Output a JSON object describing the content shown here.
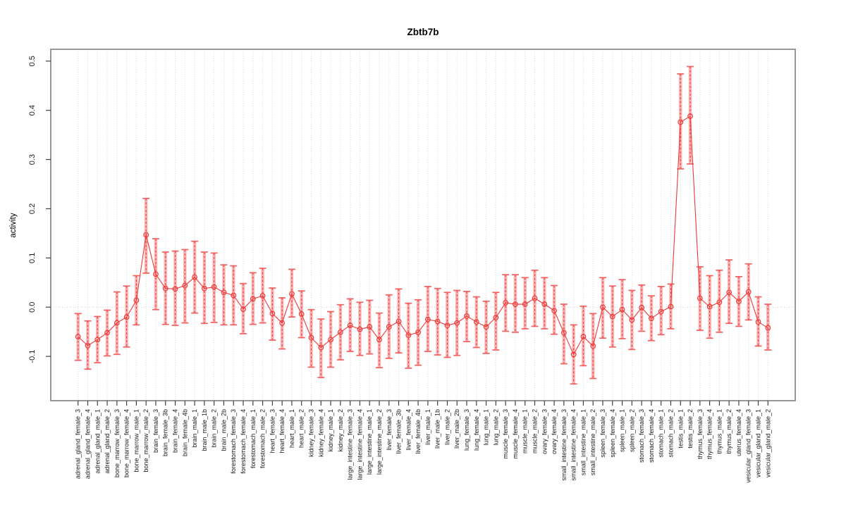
{
  "chart_data": {
    "type": "line",
    "title": "Zbtb7b",
    "ylabel": "activity",
    "xlabel": "",
    "ylim": [
      -0.19,
      0.524
    ],
    "yticks": [
      -0.1,
      0.0,
      0.1,
      0.2,
      0.3,
      0.4,
      0.5
    ],
    "grid": "vertical dotted line per category; horizontal dotted line at 0",
    "legend": "none",
    "point_style": "open-circle with error bars",
    "xticklabel_rotation": 90,
    "categories": [
      "adrenal_gland_female_3",
      "adrenal_gland_female_4",
      "adrenal_gland_male_1",
      "adrenal_gland_male_2",
      "bone_marrow_female_3",
      "bone_marrow_female_4",
      "bone_marrow_male_1",
      "bone_marrow_male_2",
      "brain_female_3",
      "brain_female_3b",
      "brain_female_4",
      "brain_female_4b",
      "brain_male_1",
      "brain_male_1b",
      "brain_male_2",
      "brain_male_2b",
      "forestomach_female_3",
      "forestomach_female_4",
      "forestomach_male_1",
      "forestomach_male_2",
      "heart_female_3",
      "heart_female_4",
      "heart_male_1",
      "heart_male_2",
      "kidney_female_3",
      "kidney_female_4",
      "kidney_male_1",
      "kidney_male_2",
      "large_intestine_female_3",
      "large_intestine_female_4",
      "large_intestine_male_1",
      "large_intestine_male_2",
      "liver_female_3",
      "liver_female_3b",
      "liver_female_4",
      "liver_female_4b",
      "liver_male_1",
      "liver_male_1b",
      "liver_male_2",
      "liver_male_2b",
      "lung_female_3",
      "lung_female_4",
      "lung_male_1",
      "lung_male_2",
      "muscle_female_3",
      "muscle_female_4",
      "muscle_male_1",
      "muscle_male_2",
      "ovary_female_3",
      "ovary_female_4",
      "small_intestine_female_3",
      "small_intestine_female_4",
      "small_intestine_male_1",
      "small_intestine_male_2",
      "spleen_female_3",
      "spleen_female_4",
      "spleen_male_1",
      "spleen_male_2",
      "stomach_female_3",
      "stomach_female_4",
      "stomach_male_1",
      "stomach_male_2",
      "testis_male_1",
      "testis_male_2",
      "thymus_female_3",
      "thymus_female_4",
      "thymus_male_1",
      "thymus_male_2",
      "uterus_female_4",
      "vesicular_gland_female_3",
      "vesicular_gland_male_1",
      "vesicular_gland_male_2"
    ],
    "values": [
      -0.06,
      -0.078,
      -0.066,
      -0.052,
      -0.032,
      -0.02,
      0.014,
      0.147,
      0.067,
      0.038,
      0.037,
      0.044,
      0.061,
      0.038,
      0.041,
      0.03,
      0.024,
      -0.004,
      0.017,
      0.023,
      -0.013,
      -0.032,
      0.027,
      -0.014,
      -0.062,
      -0.082,
      -0.066,
      -0.051,
      -0.037,
      -0.045,
      -0.04,
      -0.066,
      -0.04,
      -0.029,
      -0.057,
      -0.051,
      -0.025,
      -0.029,
      -0.037,
      -0.032,
      -0.018,
      -0.03,
      -0.04,
      -0.021,
      0.009,
      0.006,
      0.006,
      0.018,
      0.006,
      -0.007,
      -0.052,
      -0.096,
      -0.06,
      -0.079,
      0.0,
      -0.019,
      -0.005,
      -0.026,
      -0.001,
      -0.023,
      -0.009,
      0.001,
      0.376,
      0.388,
      0.018,
      0.001,
      0.01,
      0.03,
      0.012,
      0.031,
      -0.03,
      -0.042
    ],
    "err_lo": [
      -0.108,
      -0.126,
      -0.113,
      -0.099,
      -0.096,
      -0.081,
      -0.036,
      0.069,
      -0.005,
      -0.035,
      -0.037,
      -0.032,
      -0.012,
      -0.033,
      -0.031,
      -0.036,
      -0.036,
      -0.054,
      -0.035,
      -0.032,
      -0.067,
      -0.085,
      -0.02,
      -0.062,
      -0.122,
      -0.143,
      -0.122,
      -0.107,
      -0.09,
      -0.098,
      -0.095,
      -0.123,
      -0.104,
      -0.093,
      -0.124,
      -0.118,
      -0.09,
      -0.097,
      -0.102,
      -0.098,
      -0.07,
      -0.082,
      -0.094,
      -0.087,
      -0.049,
      -0.051,
      -0.044,
      -0.039,
      -0.044,
      -0.055,
      -0.115,
      -0.156,
      -0.119,
      -0.145,
      -0.063,
      -0.081,
      -0.064,
      -0.086,
      -0.049,
      -0.068,
      -0.056,
      -0.044,
      0.281,
      0.291,
      -0.047,
      -0.063,
      -0.051,
      -0.033,
      -0.039,
      -0.026,
      -0.079,
      -0.087
    ],
    "err_hi": [
      -0.013,
      -0.028,
      -0.019,
      -0.006,
      0.031,
      0.043,
      0.064,
      0.221,
      0.139,
      0.112,
      0.114,
      0.117,
      0.134,
      0.112,
      0.11,
      0.086,
      0.084,
      0.048,
      0.07,
      0.079,
      0.039,
      0.019,
      0.077,
      0.033,
      -0.005,
      -0.024,
      -0.009,
      0.005,
      0.017,
      0.01,
      0.014,
      -0.012,
      0.025,
      0.037,
      0.008,
      0.015,
      0.042,
      0.038,
      0.03,
      0.034,
      0.032,
      0.021,
      0.012,
      0.03,
      0.066,
      0.066,
      0.06,
      0.075,
      0.06,
      0.044,
      0.006,
      -0.036,
      0.002,
      -0.013,
      0.06,
      0.043,
      0.056,
      0.034,
      0.045,
      0.023,
      0.042,
      0.047,
      0.474,
      0.489,
      0.082,
      0.064,
      0.075,
      0.096,
      0.062,
      0.088,
      0.021,
      0.006
    ],
    "colors": {
      "point": "#ee3838",
      "line": "#ee3838",
      "error_bar": "#ee3838",
      "error_band": "#f9a6a6",
      "error_cap": "#f26060",
      "box": "#989898",
      "tick": "#404040",
      "grid": "#d6d6d6",
      "zero_line": "#c9c9c9",
      "text": "#1a1a1a"
    }
  }
}
